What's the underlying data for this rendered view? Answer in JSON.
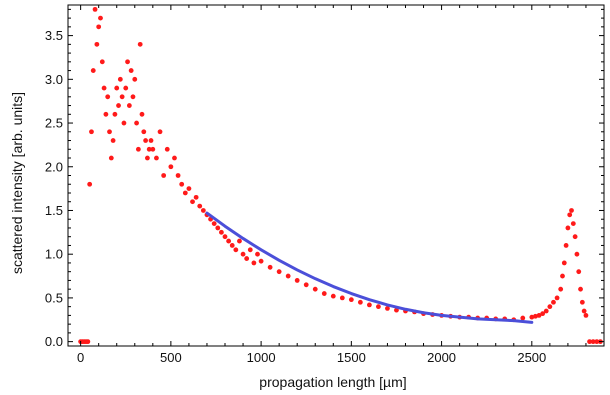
{
  "chart_data": {
    "type": "scatter",
    "title": "",
    "xlabel": "propagation length [µm]",
    "ylabel": "scattered intensity [arb. units]",
    "xlim": [
      -70,
      2900
    ],
    "ylim": [
      -0.05,
      3.85
    ],
    "xticks": [
      0,
      500,
      1000,
      1500,
      2000,
      2500
    ],
    "yticks": [
      0.0,
      0.5,
      1.0,
      1.5,
      2.0,
      2.5,
      3.0,
      3.5
    ],
    "xtick_labels": [
      "0",
      "500",
      "1000",
      "1500",
      "2000",
      "2500"
    ],
    "ytick_labels": [
      "0.0",
      "0.5",
      "1.0",
      "1.5",
      "2.0",
      "2.5",
      "3.0",
      "3.5"
    ],
    "grid": false,
    "series": [
      {
        "kind": "points",
        "color": "#ff1a1a",
        "x": [
          0,
          10,
          20,
          30,
          40,
          50,
          60,
          70,
          80,
          90,
          100,
          110,
          120,
          130,
          140,
          150,
          160,
          170,
          180,
          190,
          200,
          210,
          220,
          230,
          240,
          250,
          260,
          270,
          280,
          290,
          300,
          310,
          320,
          330,
          340,
          350,
          360,
          370,
          380,
          390,
          400,
          420,
          440,
          460,
          480,
          500,
          520,
          540,
          560,
          580,
          600,
          620,
          640,
          660,
          680,
          700,
          720,
          740,
          760,
          780,
          800,
          820,
          840,
          860,
          880,
          900,
          920,
          940,
          960,
          980,
          1000,
          1050,
          1100,
          1150,
          1200,
          1250,
          1300,
          1350,
          1400,
          1450,
          1500,
          1550,
          1600,
          1650,
          1700,
          1750,
          1800,
          1850,
          1900,
          1950,
          2000,
          2050,
          2100,
          2150,
          2200,
          2250,
          2300,
          2350,
          2400,
          2450,
          2500,
          2520,
          2540,
          2560,
          2580,
          2600,
          2620,
          2640,
          2660,
          2670,
          2680,
          2690,
          2700,
          2710,
          2720,
          2730,
          2740,
          2750,
          2760,
          2770,
          2780,
          2790,
          2800,
          2820,
          2840,
          2860,
          2880
        ],
        "y": [
          0.0,
          0.0,
          0.0,
          0.0,
          0.0,
          1.8,
          2.4,
          3.1,
          3.8,
          3.4,
          3.6,
          3.7,
          3.2,
          2.9,
          2.6,
          2.8,
          2.4,
          2.1,
          2.3,
          2.6,
          2.9,
          2.7,
          3.0,
          2.8,
          2.5,
          2.9,
          3.2,
          2.7,
          3.1,
          2.8,
          3.0,
          2.5,
          2.2,
          3.4,
          2.6,
          2.4,
          2.3,
          2.1,
          2.2,
          2.3,
          2.2,
          2.1,
          2.4,
          1.9,
          2.2,
          2.0,
          2.1,
          1.9,
          1.8,
          1.7,
          1.75,
          1.6,
          1.65,
          1.55,
          1.5,
          1.45,
          1.4,
          1.35,
          1.3,
          1.25,
          1.2,
          1.15,
          1.1,
          1.05,
          1.15,
          1.0,
          0.95,
          1.05,
          0.9,
          1.0,
          0.92,
          0.85,
          0.8,
          0.75,
          0.7,
          0.65,
          0.6,
          0.55,
          0.52,
          0.5,
          0.48,
          0.45,
          0.42,
          0.4,
          0.38,
          0.36,
          0.35,
          0.34,
          0.32,
          0.31,
          0.3,
          0.29,
          0.28,
          0.28,
          0.27,
          0.27,
          0.26,
          0.26,
          0.25,
          0.27,
          0.28,
          0.29,
          0.3,
          0.32,
          0.35,
          0.4,
          0.45,
          0.5,
          0.6,
          0.75,
          0.9,
          1.1,
          1.3,
          1.45,
          1.5,
          1.35,
          1.2,
          1.0,
          0.8,
          0.6,
          0.45,
          0.35,
          0.3,
          0.0,
          0.0,
          0.0,
          0.0
        ]
      },
      {
        "kind": "fit-line",
        "color": "#4b4fd9",
        "x": [
          700,
          800,
          900,
          1000,
          1100,
          1200,
          1300,
          1400,
          1500,
          1600,
          1700,
          1800,
          1900,
          2000,
          2100,
          2200,
          2300,
          2400,
          2500
        ],
        "y": [
          1.47,
          1.32,
          1.18,
          1.05,
          0.93,
          0.82,
          0.72,
          0.63,
          0.55,
          0.48,
          0.42,
          0.37,
          0.33,
          0.3,
          0.28,
          0.26,
          0.25,
          0.24,
          0.22
        ]
      }
    ]
  }
}
